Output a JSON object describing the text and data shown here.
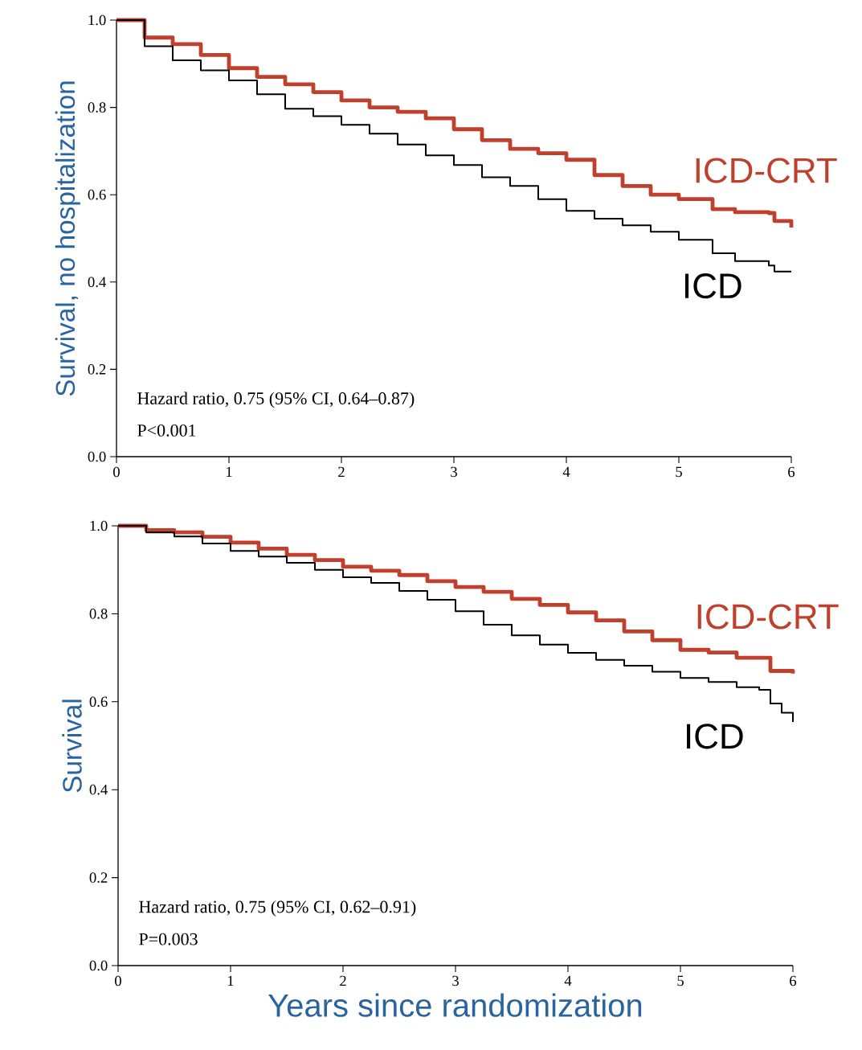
{
  "chart_data": [
    {
      "type": "step",
      "ylabel": "Survival, no hospitalization",
      "annotations": [
        "Hazard ratio, 0.75 (95% CI, 0.64–0.87)",
        "P<0.001"
      ],
      "xlim": [
        0,
        6
      ],
      "ylim": [
        0,
        1
      ],
      "xticks": [
        0,
        1,
        2,
        3,
        4,
        5,
        6
      ],
      "yticks": [
        {
          "value": 0,
          "label": "0.0"
        },
        {
          "value": 0.2,
          "label": "0.2"
        },
        {
          "value": 0.4,
          "label": "0.4"
        },
        {
          "value": 0.6,
          "label": "0.6"
        },
        {
          "value": 0.8,
          "label": "0.8"
        },
        {
          "value": 1,
          "label": "1.0"
        }
      ],
      "series": [
        {
          "name": "ICD-CRT",
          "color": "#c0402e",
          "x": [
            0,
            0.25,
            0.5,
            0.75,
            1,
            1.25,
            1.5,
            1.75,
            2,
            2.25,
            2.5,
            2.75,
            3,
            3.25,
            3.5,
            3.75,
            4,
            4.25,
            4.5,
            4.75,
            5,
            5.3,
            5.5,
            5.8,
            5.85,
            6
          ],
          "values": [
            1.0,
            0.96,
            0.945,
            0.92,
            0.89,
            0.87,
            0.853,
            0.835,
            0.816,
            0.8,
            0.79,
            0.775,
            0.75,
            0.725,
            0.705,
            0.695,
            0.68,
            0.645,
            0.62,
            0.6,
            0.59,
            0.567,
            0.56,
            0.558,
            0.54,
            0.525
          ]
        },
        {
          "name": "ICD",
          "color": "#000000",
          "x": [
            0,
            0.25,
            0.5,
            0.75,
            1,
            1.25,
            1.5,
            1.75,
            2,
            2.25,
            2.5,
            2.75,
            3,
            3.25,
            3.5,
            3.75,
            4,
            4.25,
            4.5,
            4.75,
            5,
            5.3,
            5.5,
            5.8,
            5.85,
            6
          ],
          "values": [
            1.0,
            0.94,
            0.908,
            0.885,
            0.862,
            0.83,
            0.797,
            0.78,
            0.76,
            0.74,
            0.715,
            0.69,
            0.668,
            0.64,
            0.62,
            0.59,
            0.563,
            0.545,
            0.53,
            0.515,
            0.497,
            0.466,
            0.448,
            0.438,
            0.424,
            0.424
          ]
        }
      ]
    },
    {
      "type": "step",
      "ylabel": "Survival",
      "xlabel": "Years since randomization",
      "annotations": [
        "Hazard ratio, 0.75 (95% CI, 0.62–0.91)",
        "P=0.003"
      ],
      "xlim": [
        0,
        6
      ],
      "ylim": [
        0,
        1
      ],
      "xticks": [
        0,
        1,
        2,
        3,
        4,
        5,
        6
      ],
      "yticks": [
        {
          "value": 0,
          "label": "0.0"
        },
        {
          "value": 0.2,
          "label": "0.2"
        },
        {
          "value": 0.4,
          "label": "0.4"
        },
        {
          "value": 0.6,
          "label": "0.6"
        },
        {
          "value": 0.8,
          "label": "0.8"
        },
        {
          "value": 1,
          "label": "1.0"
        }
      ],
      "series": [
        {
          "name": "ICD-CRT",
          "color": "#c0402e",
          "x": [
            0,
            0.25,
            0.5,
            0.75,
            1,
            1.25,
            1.5,
            1.75,
            2,
            2.25,
            2.5,
            2.75,
            3,
            3.25,
            3.5,
            3.75,
            4,
            4.25,
            4.5,
            4.75,
            5,
            5.25,
            5.5,
            5.8,
            6
          ],
          "values": [
            1.0,
            0.99,
            0.985,
            0.975,
            0.962,
            0.948,
            0.934,
            0.922,
            0.907,
            0.898,
            0.888,
            0.874,
            0.861,
            0.85,
            0.834,
            0.82,
            0.803,
            0.785,
            0.76,
            0.74,
            0.718,
            0.712,
            0.7,
            0.67,
            0.664
          ]
        },
        {
          "name": "ICD",
          "color": "#000000",
          "x": [
            0,
            0.25,
            0.5,
            0.75,
            1,
            1.25,
            1.5,
            1.75,
            2,
            2.25,
            2.5,
            2.75,
            3,
            3.25,
            3.5,
            3.75,
            4,
            4.25,
            4.5,
            4.75,
            5,
            5.25,
            5.5,
            5.7,
            5.8,
            5.9,
            6
          ],
          "values": [
            1.0,
            0.985,
            0.976,
            0.96,
            0.943,
            0.93,
            0.916,
            0.9,
            0.883,
            0.87,
            0.852,
            0.832,
            0.806,
            0.775,
            0.751,
            0.73,
            0.711,
            0.695,
            0.682,
            0.668,
            0.654,
            0.645,
            0.633,
            0.627,
            0.596,
            0.575,
            0.554
          ]
        }
      ]
    }
  ]
}
